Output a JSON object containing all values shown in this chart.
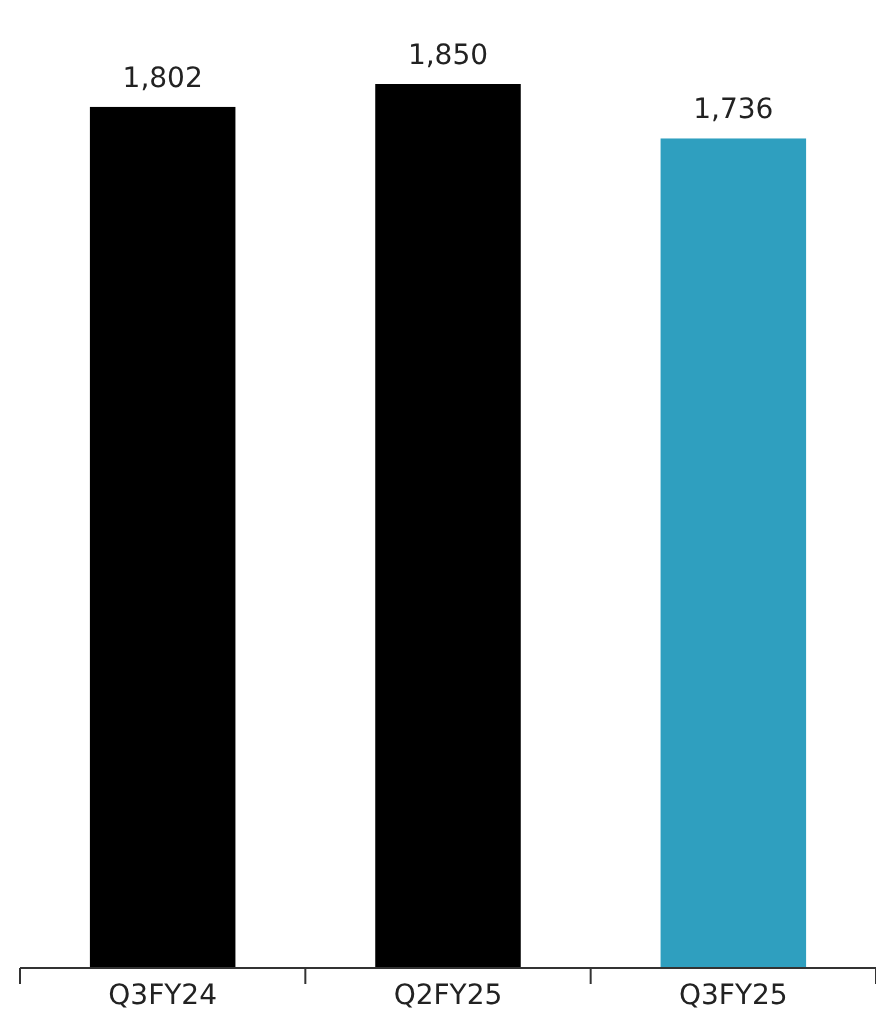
{
  "chart_data": {
    "type": "bar",
    "categories": [
      "Q3FY24",
      "Q2FY25",
      "Q3FY25"
    ],
    "values": [
      1802,
      1850,
      1736
    ],
    "colors": [
      "#000000",
      "#000000",
      "#2f9fbf"
    ],
    "value_labels": [
      "1,802",
      "1,850",
      "1,736"
    ]
  }
}
